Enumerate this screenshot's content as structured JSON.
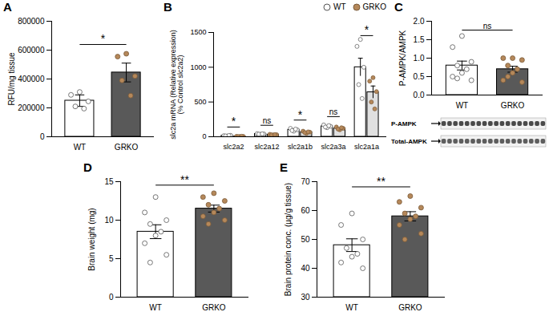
{
  "chart_data": [
    {
      "type": "bar",
      "title": "A",
      "categories": [
        "WT",
        "GRKO"
      ],
      "values": [
        250000,
        445000
      ],
      "errors": [
        40000,
        65000
      ],
      "points": [
        [
          310000,
          290000,
          245000,
          210000,
          195000
        ],
        [
          575000,
          555000,
          420000,
          390000,
          285000
        ]
      ],
      "colors": [
        "#ffffff",
        "#595959"
      ],
      "point_colors": [
        "#ffffff",
        "#b5885a"
      ],
      "ylabel": "RFU/mg tissue",
      "ylim": [
        0,
        800000
      ],
      "yticks": [
        0,
        200000,
        400000,
        600000,
        800000
      ],
      "annotations": [
        {
          "text": "*",
          "between": [
            "WT",
            "GRKO"
          ]
        }
      ]
    },
    {
      "type": "grouped_bar",
      "title": "B",
      "categories": [
        "slc2a2",
        "slc2a12",
        "slc2a1b",
        "slc2a3a",
        "slc2a1a"
      ],
      "series": [
        {
          "name": "WT",
          "color": "#ffffff",
          "point_color": "#ffffff",
          "values": [
            15,
            40,
            100,
            150,
            1000
          ],
          "errors": [
            3,
            4,
            7,
            7,
            130
          ],
          "points": [
            [
              10,
              15,
              20,
              12,
              18
            ],
            [
              35,
              45,
              40,
              38,
              42
            ],
            [
              80,
              120,
              100,
              90,
              110
            ],
            [
              130,
              170,
              150,
              140,
              160
            ],
            [
              1400,
              1300,
              1000,
              750,
              550
            ]
          ]
        },
        {
          "name": "GRKO",
          "color": "#e0e0e0",
          "point_color": "#b5885a",
          "values": [
            5,
            30,
            65,
            120,
            640
          ],
          "errors": [
            1,
            3,
            5,
            7,
            90
          ],
          "points": [
            [
              4,
              6,
              5,
              3,
              7
            ],
            [
              25,
              35,
              30,
              28,
              32
            ],
            [
              50,
              80,
              65,
              60,
              70
            ],
            [
              100,
              140,
              120,
              110,
              130
            ],
            [
              850,
              800,
              650,
              500,
              400
            ]
          ]
        }
      ],
      "ylabel": "slc2a mRNA (Relative expression)\n(% Control slc2a2)",
      "ylim": [
        0,
        1500
      ],
      "yticks": [
        0,
        500,
        1000,
        1500
      ],
      "legend": "top-right",
      "annotations": [
        {
          "text": "*",
          "category": "slc2a2"
        },
        {
          "text": "ns",
          "category": "slc2a12"
        },
        {
          "text": "*",
          "category": "slc2a1b"
        },
        {
          "text": "ns",
          "category": "slc2a3a"
        },
        {
          "text": "*",
          "category": "slc2a1a"
        }
      ]
    },
    {
      "type": "bar",
      "title": "C",
      "categories": [
        "WT",
        "GRKO"
      ],
      "values": [
        0.8,
        0.7
      ],
      "errors": [
        0.12,
        0.08
      ],
      "points": [
        [
          1.6,
          1.3,
          0.9,
          0.8,
          0.7,
          0.6,
          0.5,
          0.4,
          0.45
        ],
        [
          1.0,
          1.0,
          0.95,
          0.8,
          0.7,
          0.6,
          0.4,
          0.35,
          0.5
        ]
      ],
      "colors": [
        "#ffffff",
        "#595959"
      ],
      "point_colors": [
        "#ffffff",
        "#b5885a"
      ],
      "ylabel": "P-AMPK/AMPK",
      "ylim": [
        0,
        2
      ],
      "yticks": [
        {
          "value": 0,
          "label": "0.0"
        },
        {
          "value": 0.5,
          "label": "0.5"
        },
        {
          "value": 1,
          "label": "1.0"
        },
        {
          "value": 1.5,
          "label": "1.5"
        },
        {
          "value": 2,
          "label": "2.0"
        }
      ],
      "annotations": [
        {
          "text": "ns",
          "between": [
            "WT",
            "GRKO"
          ]
        }
      ],
      "blot_labels": [
        "P-AMPK",
        "Total-AMPK"
      ]
    },
    {
      "type": "bar",
      "title": "D",
      "categories": [
        "WT",
        "GRKO"
      ],
      "values": [
        8.5,
        11.5
      ],
      "errors": [
        0.9,
        0.45
      ],
      "points": [
        [
          13,
          11,
          10,
          9.5,
          8.5,
          8,
          7,
          5.5,
          4.5
        ],
        [
          13.5,
          13,
          12.5,
          12,
          11.5,
          11,
          10.5,
          10,
          9.5
        ]
      ],
      "colors": [
        "#ffffff",
        "#595959"
      ],
      "point_colors": [
        "#ffffff",
        "#b5885a"
      ],
      "ylabel": "Brain weight (mg)",
      "ylim": [
        0,
        15
      ],
      "yticks": [
        0,
        5,
        10,
        15
      ],
      "annotations": [
        {
          "text": "**",
          "between": [
            "WT",
            "GRKO"
          ]
        }
      ]
    },
    {
      "type": "bar",
      "title": "E",
      "categories": [
        "WT",
        "GRKO"
      ],
      "values": [
        48,
        58
      ],
      "errors": [
        2.2,
        1.6
      ],
      "points": [
        [
          59,
          55,
          50,
          47,
          45,
          44,
          42,
          40
        ],
        [
          65,
          63,
          61,
          59,
          58,
          57,
          55,
          52,
          50
        ]
      ],
      "colors": [
        "#ffffff",
        "#595959"
      ],
      "point_colors": [
        "#ffffff",
        "#b5885a"
      ],
      "ylabel": "Brain protein conc. (µg/g tissue)",
      "ylim": [
        30,
        70
      ],
      "yticks": [
        30,
        40,
        50,
        60,
        70
      ],
      "annotations": [
        {
          "text": "**",
          "between": [
            "WT",
            "GRKO"
          ]
        }
      ]
    }
  ]
}
